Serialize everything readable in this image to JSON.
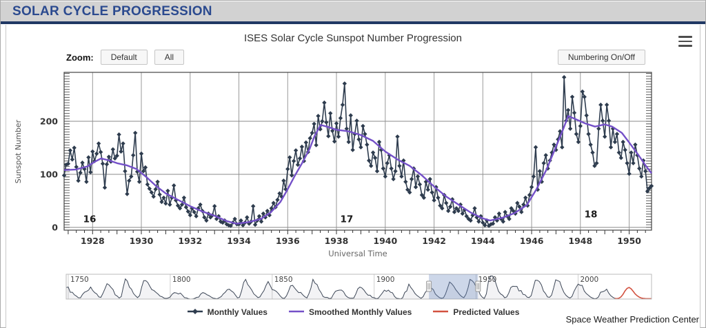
{
  "header": {
    "title": "SOLAR CYCLE PROGRESSION"
  },
  "toolbar": {
    "zoom_label": "Zoom:",
    "default_button": "Default",
    "all_button": "All",
    "numbering_button": "Numbering On/Off",
    "menu_icon": "hamburger-icon"
  },
  "footer": {
    "credit": "Space Weather Prediction Center"
  },
  "chart_data": {
    "type": "line",
    "title": "ISES Solar Cycle Sunspot Number Progression",
    "xlabel": "Universal Time",
    "ylabel": "Sunspot Number",
    "x_range": [
      1926.8333,
      1950.9167
    ],
    "y_range": [
      -5.2,
      292.2
    ],
    "x_ticks": [
      1928,
      1930,
      1932,
      1934,
      1936,
      1938,
      1940,
      1942,
      1944,
      1946,
      1948,
      1950
    ],
    "y_ticks": [
      0,
      100,
      200
    ],
    "grid": true,
    "legend_position": "bottom",
    "cycle_annotations": [
      {
        "label": "16",
        "x": 1927.88,
        "y": 10
      },
      {
        "label": "17",
        "x": 1938.42,
        "y": 10
      },
      {
        "label": "18",
        "x": 1948.43,
        "y": 19
      }
    ],
    "series": [
      {
        "name": "Monthly Values",
        "style": "line-diamond",
        "color": "#2e3c4e",
        "x_start": 1926.8333,
        "x_step_years": 0.083333,
        "values": [
          98,
          118,
          120,
          145,
          128,
          150,
          114,
          88,
          103,
          122,
          110,
          86,
          132,
          104,
          143,
          125,
          139,
          158,
          142,
          120,
          75,
          119,
          133,
          124,
          147,
          130,
          135,
          175,
          143,
          158,
          106,
          63,
          88,
          96,
          136,
          178,
          105,
          86,
          139,
          106,
          113,
          81,
          73,
          66,
          58,
          72,
          86,
          62,
          48,
          56,
          45,
          69,
          43,
          56,
          79,
          51,
          41,
          36,
          43,
          56,
          38,
          30,
          23,
          36,
          29,
          21,
          36,
          43,
          31,
          19,
          13,
          26,
          19,
          23,
          40,
          16,
          21,
          11,
          9,
          13,
          6,
          4,
          3,
          9,
          16,
          6,
          6,
          13,
          4,
          9,
          19,
          7,
          11,
          40,
          5,
          13,
          21,
          11,
          26,
          19,
          31,
          23,
          36,
          46,
          38,
          52,
          64,
          58,
          88,
          72,
          110,
          132,
          98,
          125,
          145,
          118,
          130,
          152,
          125,
          160,
          142,
          168,
          178,
          195,
          155,
          210,
          185,
          200,
          235,
          198,
          172,
          215,
          182,
          162,
          196,
          171,
          206,
          231,
          271,
          186,
          161,
          211,
          146,
          176,
          201,
          166,
          151,
          191,
          176,
          156,
          126,
          116,
          141,
          131,
          106,
          161,
          146,
          111,
          96,
          121,
          136,
          111,
          91,
          106,
          171,
          116,
          96,
          126,
          86,
          71,
          66,
          91,
          111,
          76,
          96,
          81,
          61,
          56,
          86,
          71,
          91,
          66,
          51,
          76,
          56,
          41,
          36,
          61,
          46,
          31,
          39,
          53,
          29,
          36,
          31,
          43,
          26,
          33,
          21,
          16,
          13,
          23,
          36,
          19,
          11,
          21,
          9,
          4,
          13,
          3,
          6,
          7,
          19,
          13,
          26,
          16,
          11,
          29,
          21,
          16,
          36,
          31,
          26,
          46,
          39,
          29,
          43,
          56,
          41,
          61,
          76,
          96,
          151,
          71,
          106,
          86,
          121,
          136,
          111,
          126,
          141,
          156,
          146,
          166,
          181,
          151,
          283,
          201,
          221,
          186,
          246,
          216,
          176,
          161,
          191,
          256,
          246,
          211,
          176,
          156,
          141,
          116,
          121,
          186,
          231,
          201,
          171,
          231,
          201,
          151,
          186,
          161,
          176,
          141,
          131,
          161,
          146,
          121,
          101,
          141,
          121,
          156,
          136,
          111,
          96,
          126,
          106,
          68,
          74,
          78
        ]
      },
      {
        "name": "Smoothed Monthly Values",
        "style": "line",
        "color": "#7450c8",
        "points": [
          [
            1926.83,
            108
          ],
          [
            1927.3,
            109
          ],
          [
            1927.8,
            115
          ],
          [
            1928.1,
            124
          ],
          [
            1928.35,
            130
          ],
          [
            1928.7,
            126
          ],
          [
            1929.0,
            121
          ],
          [
            1929.4,
            117
          ],
          [
            1929.8,
            110
          ],
          [
            1930.2,
            95
          ],
          [
            1930.6,
            78
          ],
          [
            1931.0,
            64
          ],
          [
            1931.5,
            52
          ],
          [
            1932.0,
            40
          ],
          [
            1932.5,
            30
          ],
          [
            1933.0,
            22
          ],
          [
            1933.5,
            12
          ],
          [
            1933.9,
            7
          ],
          [
            1934.4,
            10
          ],
          [
            1934.9,
            16
          ],
          [
            1935.3,
            28
          ],
          [
            1935.7,
            48
          ],
          [
            1936.0,
            72
          ],
          [
            1936.3,
            98
          ],
          [
            1936.6,
            122
          ],
          [
            1936.9,
            148
          ],
          [
            1937.1,
            172
          ],
          [
            1937.35,
            193
          ],
          [
            1937.6,
            190
          ],
          [
            1938.0,
            184
          ],
          [
            1938.5,
            181
          ],
          [
            1939.0,
            174
          ],
          [
            1939.5,
            163
          ],
          [
            1940.0,
            143
          ],
          [
            1940.5,
            128
          ],
          [
            1941.0,
            116
          ],
          [
            1941.5,
            98
          ],
          [
            1942.0,
            77
          ],
          [
            1942.5,
            58
          ],
          [
            1943.0,
            43
          ],
          [
            1943.5,
            28
          ],
          [
            1944.0,
            17
          ],
          [
            1944.3,
            13
          ],
          [
            1944.8,
            18
          ],
          [
            1945.3,
            27
          ],
          [
            1945.8,
            42
          ],
          [
            1946.2,
            72
          ],
          [
            1946.6,
            108
          ],
          [
            1947.0,
            152
          ],
          [
            1947.3,
            186
          ],
          [
            1947.5,
            210
          ],
          [
            1947.8,
            204
          ],
          [
            1948.2,
            196
          ],
          [
            1948.6,
            190
          ],
          [
            1949.0,
            194
          ],
          [
            1949.3,
            190
          ],
          [
            1949.7,
            178
          ],
          [
            1950.0,
            160
          ],
          [
            1950.4,
            135
          ],
          [
            1950.7,
            115
          ],
          [
            1950.92,
            102
          ]
        ]
      },
      {
        "name": "Predicted Values",
        "style": "line",
        "color": "#d2513f",
        "points": []
      }
    ],
    "navigator": {
      "x_range": [
        1749,
        2036
      ],
      "tick_years": [
        1750,
        1800,
        1850,
        1900,
        1950,
        2000
      ],
      "y_max": 290,
      "selection": [
        1926.8333,
        1950.9167
      ],
      "selection_color": "rgba(100,131,188,0.32)",
      "observed": {
        "name": "historical-yearly-sunspot-number",
        "color": "#3d4757",
        "x_start": 1749,
        "x_step_years": 1,
        "values": [
          135,
          140,
          80,
          80,
          50,
          35,
          15,
          15,
          55,
          80,
          90,
          105,
          140,
          100,
          75,
          60,
          25,
          20,
          65,
          120,
          180,
          165,
          135,
          110,
          50,
          35,
          12,
          30,
          140,
          235,
          210,
          140,
          115,
          65,
          38,
          17,
          40,
          140,
          215,
          215,
          195,
          150,
          110,
          100,
          78,
          60,
          35,
          27,
          11,
          7,
          12,
          25,
          58,
          75,
          72,
          60,
          70,
          45,
          17,
          13,
          4,
          0,
          2,
          8,
          20,
          23,
          60,
          76,
          68,
          51,
          40,
          25,
          11,
          7,
          3,
          15,
          28,
          60,
          80,
          110,
          115,
          95,
          78,
          46,
          14,
          22,
          95,
          195,
          230,
          170,
          140,
          105,
          60,
          40,
          17,
          25,
          65,
          100,
          160,
          205,
          160,
          110,
          105,
          90,
          65,
          35,
          11,
          8,
          38,
          90,
          155,
          160,
          130,
          100,
          75,
          78,
          50,
          27,
          13,
          62,
          130,
          230,
          185,
          170,
          110,
          75,
          28,
          19,
          20,
          6,
          10,
          55,
          90,
          100,
          105,
          105,
          85,
          42,
          22,
          11,
          10,
          12,
          60,
          120,
          140,
          130,
          105,
          70,
          45,
          45,
          20,
          16,
          5,
          9,
          40,
          70,
          105,
          90,
          105,
          80,
          73,
          30,
          9,
          6,
          2,
          16,
          78,
          95,
          175,
          135,
          105,
          65,
          42,
          24,
          9,
          28,
          75,
          105,
          115,
          130,
          110,
          60,
          36,
          18,
          9,
          15,
          60,
          130,
          200,
          180,
          150,
          110,
          80,
          50,
          27,
          16,
          55,
          130,
          230,
          215,
          190,
          140,
          110,
          52,
          22,
          7,
          60,
          200,
          270,
          270,
          235,
          160,
          90,
          60,
          45,
          15,
          25,
          70,
          135,
          150,
          148,
          148,
          95,
          100,
          55,
          50,
          22,
          18,
          40,
          130,
          220,
          220,
          205,
          165,
          95,
          65,
          25,
          20,
          45,
          130,
          225,
          215,
          205,
          135,
          80,
          45,
          25,
          12,
          30,
          90,
          135,
          175,
          160,
          160,
          95,
          65,
          45,
          25,
          12,
          4,
          7,
          25,
          80,
          85,
          95,
          115,
          70,
          40,
          22,
          7
        ]
      },
      "predicted": {
        "name": "predicted-yearly-sunspot-number",
        "color": "#d2513f",
        "x_start": 2018,
        "x_step_years": 1,
        "values": [
          7,
          5,
          10,
          25,
          55,
          95,
          125,
          135,
          120,
          90,
          60,
          38,
          22,
          12,
          8,
          6,
          5,
          5,
          5
        ]
      }
    }
  }
}
